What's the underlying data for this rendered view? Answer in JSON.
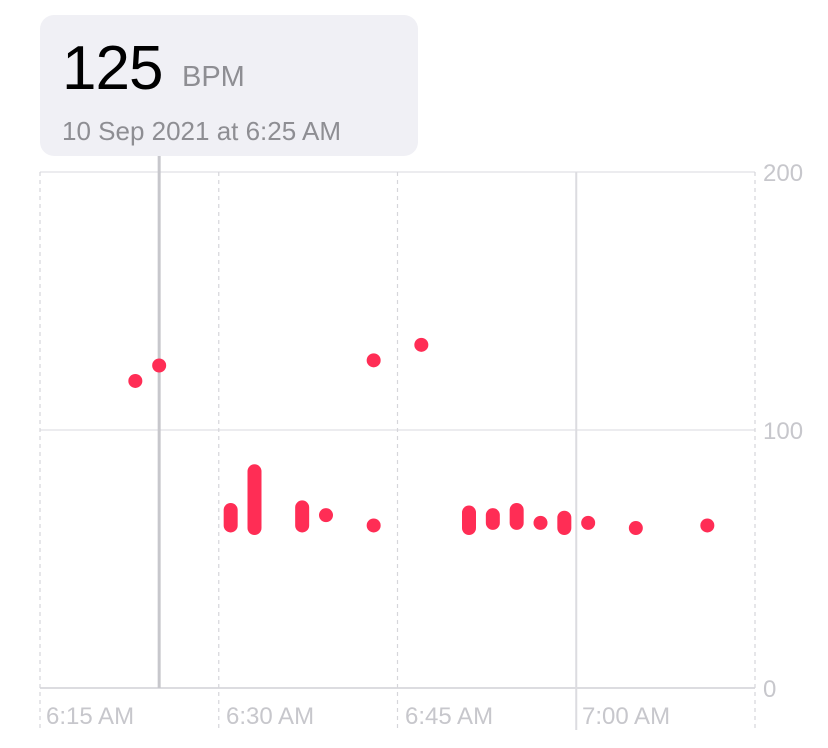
{
  "tooltip": {
    "value": "125",
    "unit": "BPM",
    "date": "10 Sep 2021 at 6:25 AM"
  },
  "colors": {
    "accent": "#ff2d55",
    "grid": "#e5e5ea",
    "label": "#c7c7cc",
    "card": "#f0f0f5"
  },
  "chart_data": {
    "type": "scatter",
    "title": "",
    "xlabel": "",
    "ylabel": "",
    "ylim": [
      0,
      200
    ],
    "xlim": [
      "6:15",
      "7:15"
    ],
    "y_ticks": [
      "0",
      "100",
      "200"
    ],
    "x_ticks": [
      "6:15 AM",
      "6:30 AM",
      "6:45 AM",
      "7:00 AM"
    ],
    "selected": {
      "time": "6:25",
      "bpm": 125
    },
    "points": [
      {
        "time": "6:23",
        "min": 119,
        "max": 119
      },
      {
        "time": "6:25",
        "min": 125,
        "max": 125
      },
      {
        "time": "6:31",
        "min": 63,
        "max": 69
      },
      {
        "time": "6:33",
        "min": 62,
        "max": 84
      },
      {
        "time": "6:37",
        "min": 63,
        "max": 70
      },
      {
        "time": "6:39",
        "min": 67,
        "max": 67
      },
      {
        "time": "6:43",
        "min": 127,
        "max": 127
      },
      {
        "time": "6:43",
        "min": 63,
        "max": 63
      },
      {
        "time": "6:47",
        "min": 133,
        "max": 133
      },
      {
        "time": "6:51",
        "min": 62,
        "max": 68
      },
      {
        "time": "6:53",
        "min": 64,
        "max": 67
      },
      {
        "time": "6:55",
        "min": 64,
        "max": 69
      },
      {
        "time": "6:57",
        "min": 64,
        "max": 64
      },
      {
        "time": "6:59",
        "min": 62,
        "max": 66
      },
      {
        "time": "7:01",
        "min": 64,
        "max": 64
      },
      {
        "time": "7:05",
        "min": 62,
        "max": 62
      },
      {
        "time": "7:11",
        "min": 63,
        "max": 63
      }
    ]
  }
}
